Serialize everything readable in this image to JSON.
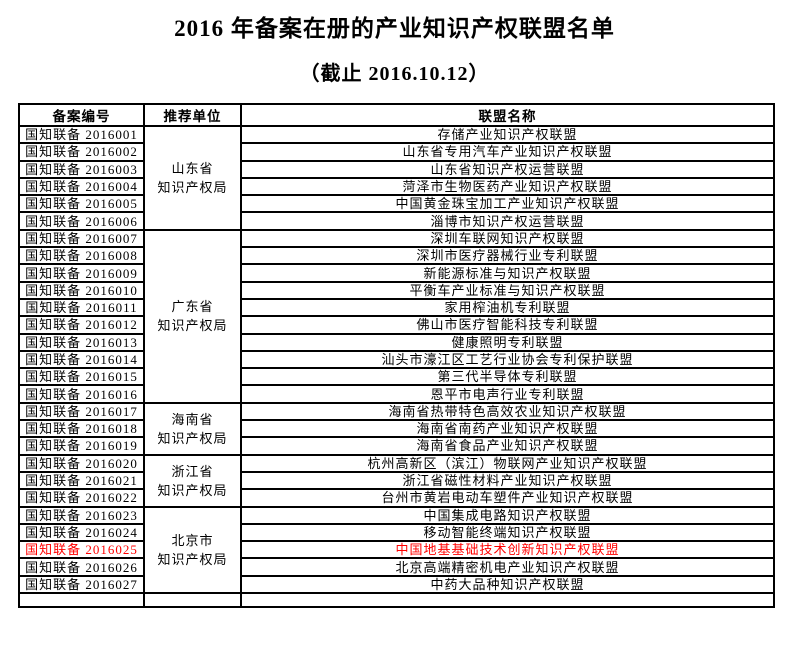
{
  "page": {
    "title": "2016 年备案在册的产业知识产权联盟名单",
    "subtitle": "（截止 2016.10.12）"
  },
  "table": {
    "headers": [
      "备案编号",
      "推荐单位",
      "联盟名称"
    ],
    "highlight_color": "#ff0000",
    "groups": [
      {
        "org": "山东省\n知识产权局",
        "rows": [
          {
            "id": "国知联备 2016001",
            "name": "存储产业知识产权联盟"
          },
          {
            "id": "国知联备 2016002",
            "name": "山东省专用汽车产业知识产权联盟"
          },
          {
            "id": "国知联备 2016003",
            "name": "山东省知识产权运营联盟"
          },
          {
            "id": "国知联备 2016004",
            "name": "菏泽市生物医药产业知识产权联盟"
          },
          {
            "id": "国知联备 2016005",
            "name": "中国黄金珠宝加工产业知识产权联盟"
          },
          {
            "id": "国知联备 2016006",
            "name": "淄博市知识产权运营联盟"
          }
        ]
      },
      {
        "org": "广东省\n知识产权局",
        "rows": [
          {
            "id": "国知联备 2016007",
            "name": "深圳车联网知识产权联盟"
          },
          {
            "id": "国知联备 2016008",
            "name": "深圳市医疗器械行业专利联盟"
          },
          {
            "id": "国知联备 2016009",
            "name": "新能源标准与知识产权联盟"
          },
          {
            "id": "国知联备 2016010",
            "name": "平衡车产业标准与知识产权联盟"
          },
          {
            "id": "国知联备 2016011",
            "name": "家用榨油机专利联盟"
          },
          {
            "id": "国知联备 2016012",
            "name": "佛山市医疗智能科技专利联盟"
          },
          {
            "id": "国知联备 2016013",
            "name": "健康照明专利联盟"
          },
          {
            "id": "国知联备 2016014",
            "name": "汕头市濠江区工艺行业协会专利保护联盟"
          },
          {
            "id": "国知联备 2016015",
            "name": "第三代半导体专利联盟"
          },
          {
            "id": "国知联备 2016016",
            "name": "恩平市电声行业专利联盟"
          }
        ]
      },
      {
        "org": "海南省\n知识产权局",
        "rows": [
          {
            "id": "国知联备 2016017",
            "name": "海南省热带特色高效农业知识产权联盟"
          },
          {
            "id": "国知联备 2016018",
            "name": "海南省南药产业知识产权联盟"
          },
          {
            "id": "国知联备 2016019",
            "name": "海南省食品产业知识产权联盟"
          }
        ]
      },
      {
        "org": "浙江省\n知识产权局",
        "rows": [
          {
            "id": "国知联备 2016020",
            "name": "杭州高新区（滨江）物联网产业知识产权联盟"
          },
          {
            "id": "国知联备 2016021",
            "name": "浙江省磁性材料产业知识产权联盟"
          },
          {
            "id": "国知联备 2016022",
            "name": "台州市黄岩电动车塑件产业知识产权联盟"
          }
        ]
      },
      {
        "org": "北京市\n知识产权局",
        "rows": [
          {
            "id": "国知联备 2016023",
            "name": "中国集成电路知识产权联盟"
          },
          {
            "id": "国知联备 2016024",
            "name": "移动智能终端知识产权联盟"
          },
          {
            "id": "国知联备 2016025",
            "name": "中国地基基础技术创新知识产权联盟",
            "highlight": true
          },
          {
            "id": "国知联备 2016026",
            "name": "北京高端精密机电产业知识产权联盟"
          },
          {
            "id": "国知联备 2016027",
            "name": "中药大品种知识产权联盟"
          }
        ]
      }
    ]
  }
}
